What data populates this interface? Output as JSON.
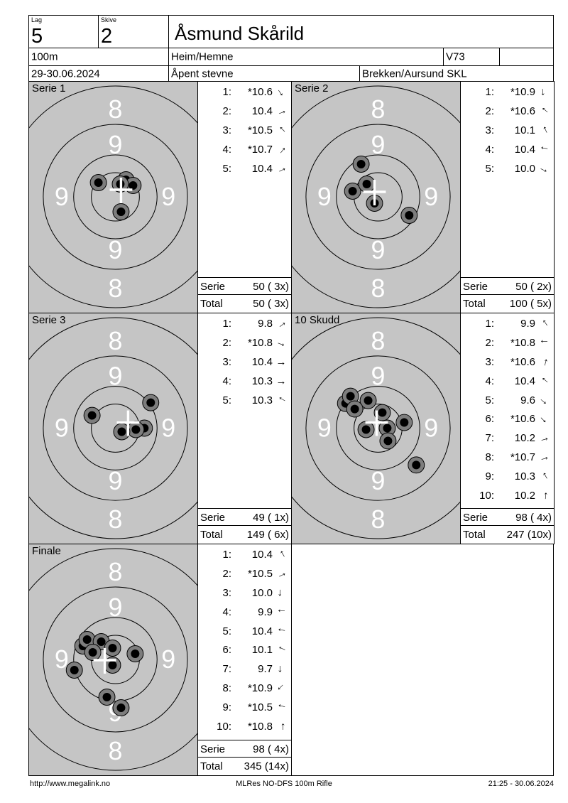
{
  "header": {
    "lag_label": "Lag",
    "lag_value": "5",
    "skive_label": "Skive",
    "skive_value": "2",
    "shooter_name": "Åsmund Skårild",
    "distance": "100m",
    "venue": "Heim/Hemne",
    "class": "V73",
    "dates": "29-30.06.2024",
    "event": "Åpent stevne",
    "club": "Brekken/Aursund SKL"
  },
  "labels": {
    "serie": "Serie",
    "total": "Total"
  },
  "colors": {
    "target_bg": "#c5c5c5",
    "ring_line": "#000000",
    "ring_text": "#ffffff",
    "shot_rim": "#7d7d7d",
    "shot_core": "#000000",
    "cross": "#ffffff"
  },
  "panels": [
    {
      "title": "Serie 1",
      "shots": [
        {
          "no": "1:",
          "value": "*10.6",
          "arrow_deg": 55
        },
        {
          "no": "2:",
          "value": "10.4",
          "arrow_deg": -20
        },
        {
          "no": "3:",
          "value": "*10.5",
          "arrow_deg": -135
        },
        {
          "no": "4:",
          "value": "*10.7",
          "arrow_deg": -50
        },
        {
          "no": "5:",
          "value": "10.4",
          "arrow_deg": -25
        }
      ],
      "serie_sum": "50 ( 3x)",
      "total_sum": "50 ( 3x)",
      "cross": [
        130,
        152
      ],
      "holes": [
        [
          137,
          138
        ],
        [
          147,
          146
        ],
        [
          98,
          142
        ],
        [
          130,
          183
        ],
        [
          129,
          144
        ]
      ]
    },
    {
      "title": "Serie 2",
      "shots": [
        {
          "no": "1:",
          "value": "*10.9",
          "arrow_deg": 85
        },
        {
          "no": "2:",
          "value": "*10.6",
          "arrow_deg": -140
        },
        {
          "no": "3:",
          "value": "10.1",
          "arrow_deg": -115
        },
        {
          "no": "4:",
          "value": "10.4",
          "arrow_deg": 190
        },
        {
          "no": "5:",
          "value": "10.0",
          "arrow_deg": 25
        }
      ],
      "serie_sum": "50 ( 2x)",
      "total_sum": "100 ( 5x)",
      "cross": [
        117,
        155
      ],
      "holes": [
        [
          98,
          116
        ],
        [
          86,
          154
        ],
        [
          106,
          144
        ],
        [
          166,
          188
        ],
        [
          117,
          171
        ]
      ]
    },
    {
      "title": "Serie 3",
      "shots": [
        {
          "no": "1:",
          "value": "9.8",
          "arrow_deg": -35
        },
        {
          "no": "2:",
          "value": "*10.8",
          "arrow_deg": 20
        },
        {
          "no": "3:",
          "value": "10.4",
          "arrow_deg": 0
        },
        {
          "no": "4:",
          "value": "10.3",
          "arrow_deg": 0
        },
        {
          "no": "5:",
          "value": "10.3",
          "arrow_deg": -150
        }
      ],
      "serie_sum": "49 ( 1x)",
      "total_sum": "149 ( 6x)",
      "cross": [
        140,
        154
      ],
      "holes": [
        [
          172,
          126
        ],
        [
          89,
          144
        ],
        [
          163,
          162
        ],
        [
          151,
          164
        ],
        [
          131,
          167
        ]
      ]
    },
    {
      "title": "10 Skudd",
      "shots": [
        {
          "no": "1:",
          "value": "9.9",
          "arrow_deg": -125
        },
        {
          "no": "2:",
          "value": "*10.8",
          "arrow_deg": 180
        },
        {
          "no": "3:",
          "value": "*10.6",
          "arrow_deg": -75
        },
        {
          "no": "4:",
          "value": "10.4",
          "arrow_deg": -140
        },
        {
          "no": "5:",
          "value": "9.6",
          "arrow_deg": 40
        },
        {
          "no": "6:",
          "value": "*10.6",
          "arrow_deg": 45
        },
        {
          "no": "7:",
          "value": "10.2",
          "arrow_deg": -15
        },
        {
          "no": "8:",
          "value": "*10.7",
          "arrow_deg": -15
        },
        {
          "no": "9:",
          "value": "10.3",
          "arrow_deg": -120
        },
        {
          "no": "10:",
          "value": "10.2",
          "arrow_deg": -85
        }
      ],
      "serie_sum": "98 ( 4x)",
      "total_sum": "247 (10x)",
      "cross": [
        120,
        154
      ],
      "holes": [
        [
          76,
          127
        ],
        [
          83,
          117
        ],
        [
          108,
          123
        ],
        [
          89,
          135
        ],
        [
          128,
          140
        ],
        [
          159,
          154
        ],
        [
          105,
          164
        ],
        [
          135,
          162
        ],
        [
          136,
          180
        ],
        [
          176,
          214
        ]
      ]
    },
    {
      "title": "Finale",
      "shots": [
        {
          "no": "1:",
          "value": "10.4",
          "arrow_deg": -120
        },
        {
          "no": "2:",
          "value": "*10.5",
          "arrow_deg": -25
        },
        {
          "no": "3:",
          "value": "10.0",
          "arrow_deg": 95
        },
        {
          "no": "4:",
          "value": "9.9",
          "arrow_deg": 180
        },
        {
          "no": "5:",
          "value": "10.4",
          "arrow_deg": 190
        },
        {
          "no": "6:",
          "value": "10.1",
          "arrow_deg": -155
        },
        {
          "no": "7:",
          "value": "9.7",
          "arrow_deg": 90
        },
        {
          "no": "8:",
          "value": "*10.9",
          "arrow_deg": 135
        },
        {
          "no": "9:",
          "value": "*10.5",
          "arrow_deg": 195
        },
        {
          "no": "10:",
          "value": "*10.8",
          "arrow_deg": -90
        }
      ],
      "serie_sum": "98 ( 4x)",
      "total_sum": "345 (14x)",
      "cross": [
        107,
        163
      ],
      "holes": [
        [
          76,
          143
        ],
        [
          82,
          134
        ],
        [
          102,
          137
        ],
        [
          118,
          146
        ],
        [
          90,
          152
        ],
        [
          150,
          154
        ],
        [
          118,
          170
        ],
        [
          64,
          177
        ],
        [
          110,
          215
        ],
        [
          130,
          230
        ]
      ]
    }
  ],
  "footer": {
    "url": "http://www.megalink.no",
    "report_name": "MLRes NO-DFS 100m Rifle",
    "printed": "21:25 - 30.06.2024"
  }
}
